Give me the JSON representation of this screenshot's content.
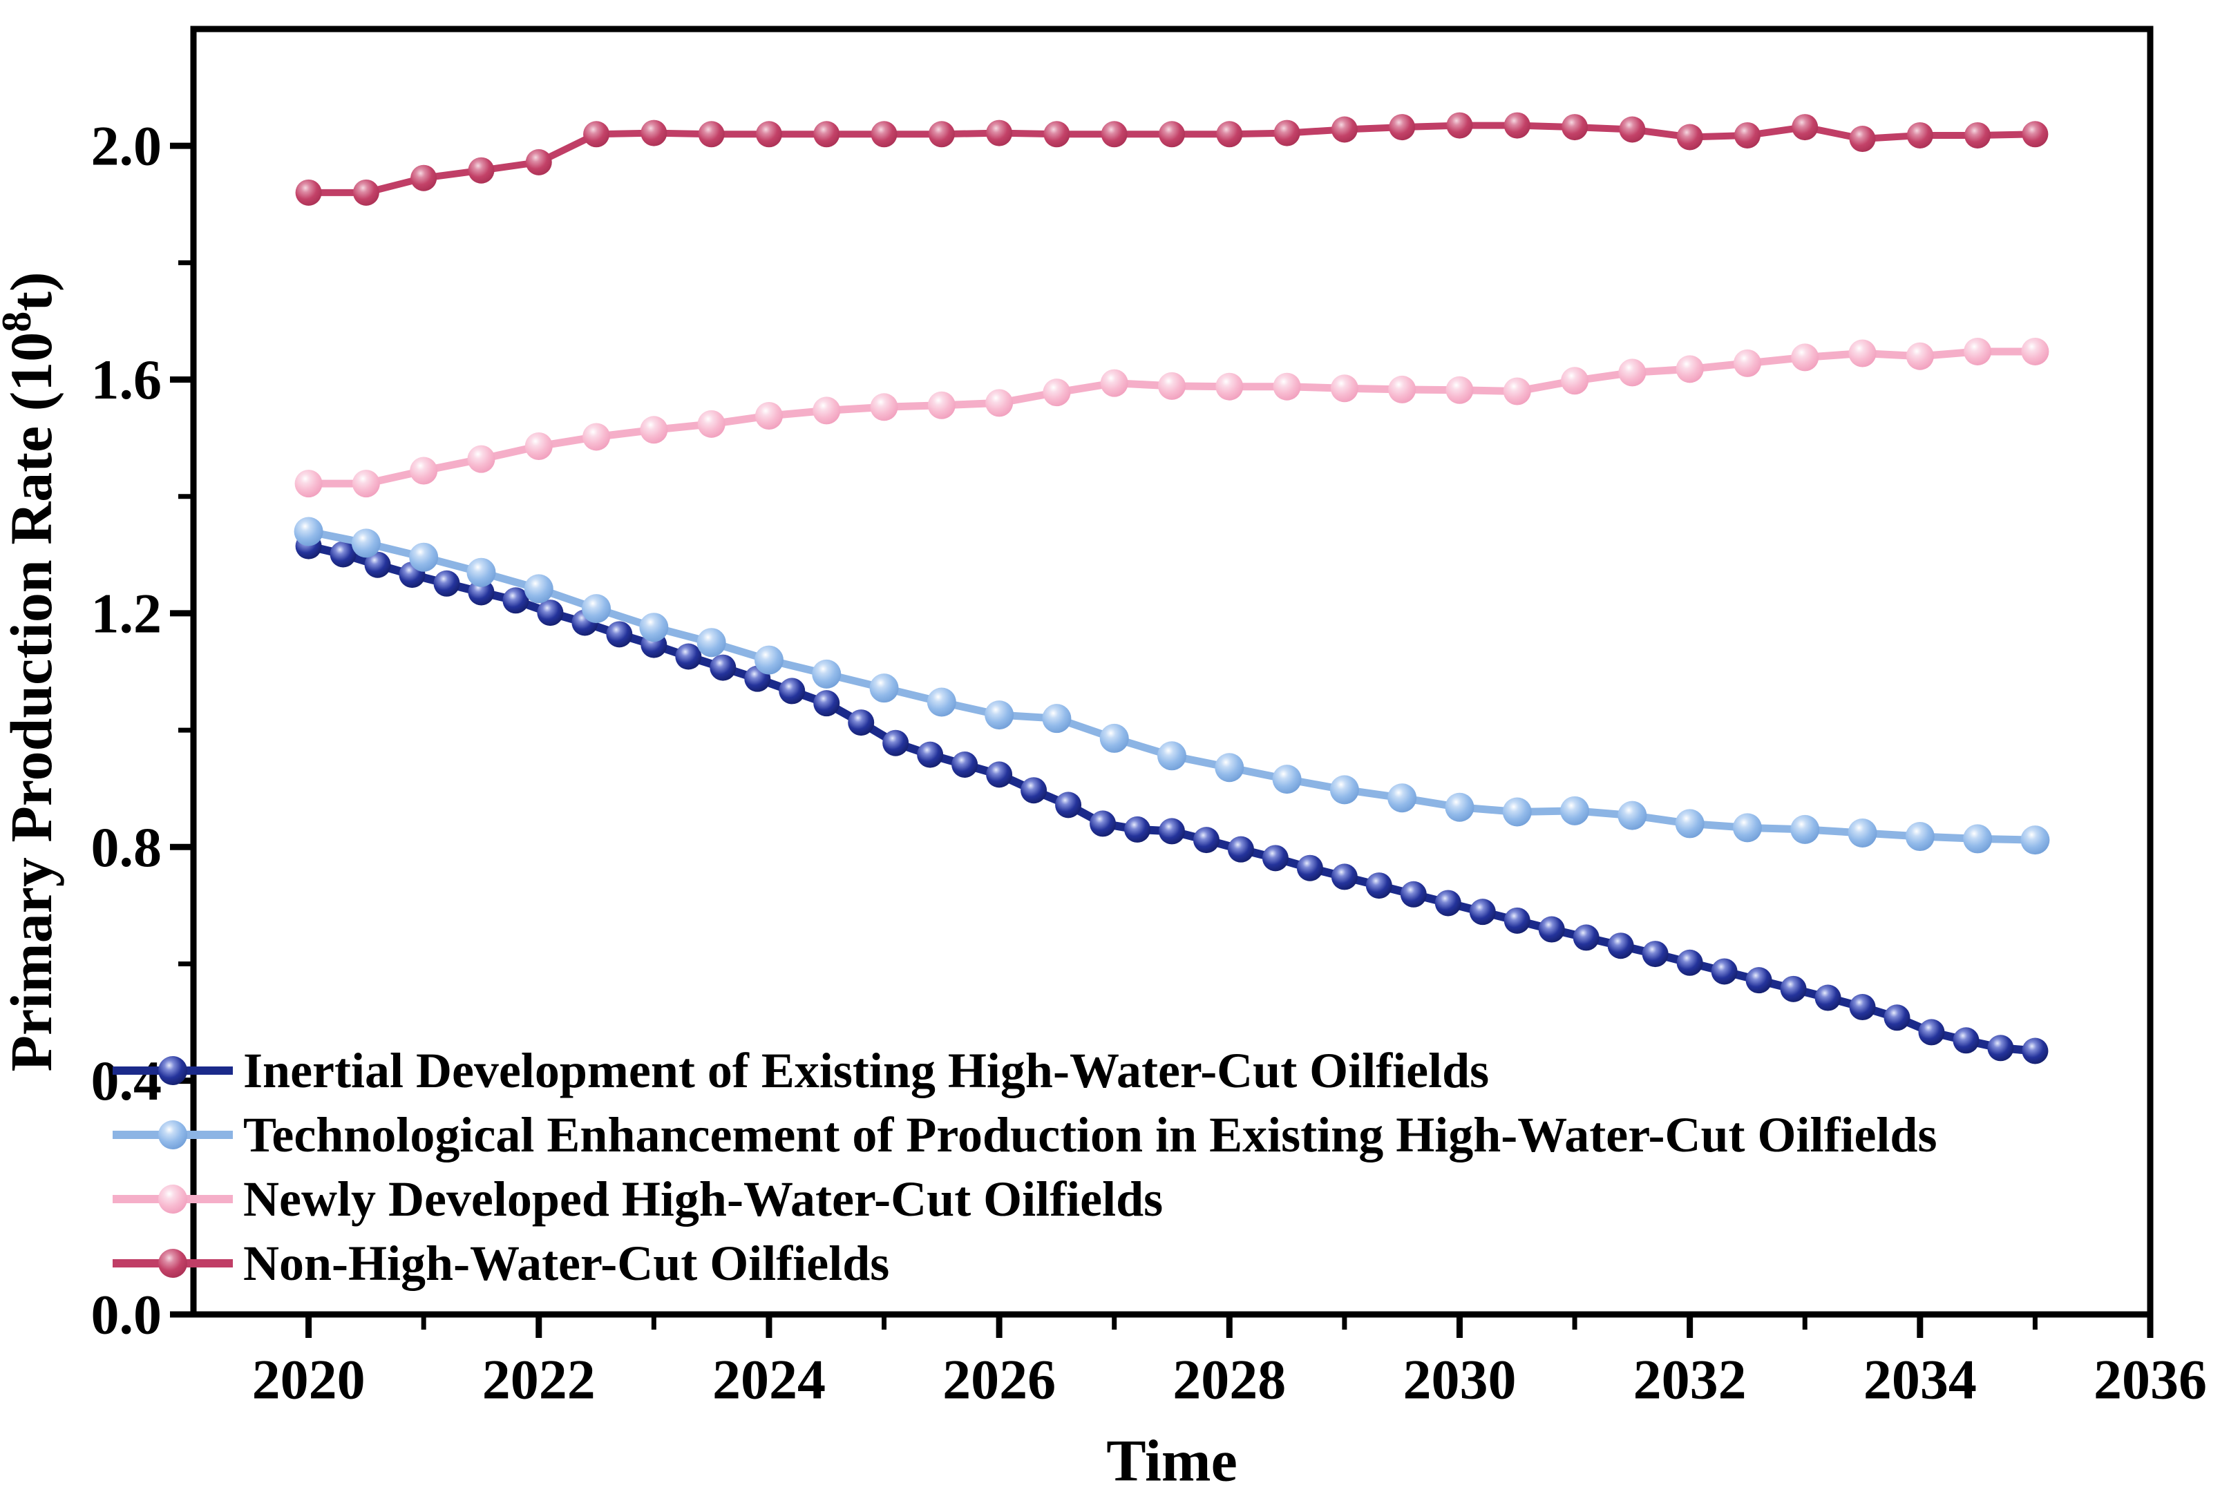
{
  "chart_data": {
    "type": "line",
    "title": "",
    "xlabel": "Time",
    "ylabel_parts": {
      "prefix": "Primary Production Rate (10",
      "superscript": "8",
      "suffix": "t)"
    },
    "xlim": [
      2019,
      2036
    ],
    "ylim": [
      0.0,
      2.2
    ],
    "grid": "off",
    "legend_position": "lower-left",
    "x_major_ticks": [
      2020,
      2022,
      2024,
      2026,
      2028,
      2030,
      2032,
      2034,
      2036
    ],
    "x_tick_labels": [
      "2020",
      "2022",
      "2024",
      "2026",
      "2028",
      "2030",
      "2032",
      "2034",
      "2036"
    ],
    "x_minor_ticks": [
      2021,
      2023,
      2025,
      2027,
      2029,
      2031,
      2033,
      2035
    ],
    "y_major_ticks": [
      0.0,
      0.4,
      0.8,
      1.2,
      1.6,
      2.0
    ],
    "y_tick_labels": [
      "0.0",
      "0.4",
      "0.8",
      "1.2",
      "1.6",
      "2.0"
    ],
    "y_minor_ticks": [
      0.2,
      0.6,
      1.0,
      1.4,
      1.8
    ],
    "axis_color": "#000000",
    "series": [
      {
        "name": "Inertial Development of Existing High-Water-Cut Oilfields",
        "color": "#24339B",
        "line_color": "#1B2A8A",
        "highlight": "#E6EBFC",
        "mid": "#7C89D6",
        "edge": "#121C66",
        "marker_radius": 19,
        "line_width": 12,
        "x": [
          2020,
          2020.3,
          2020.6,
          2020.9,
          2021.2,
          2021.5,
          2021.8,
          2022.1,
          2022.4,
          2022.7,
          2023,
          2023.3,
          2023.6,
          2023.9,
          2024.2,
          2024.5,
          2024.8,
          2025.1,
          2025.4,
          2025.7,
          2026,
          2026.3,
          2026.6,
          2026.9,
          2027.2,
          2027.5,
          2027.8,
          2028.1,
          2028.4,
          2028.7,
          2029,
          2029.3,
          2029.6,
          2029.9,
          2030.2,
          2030.5,
          2030.8,
          2031.1,
          2031.4,
          2031.7,
          2032,
          2032.3,
          2032.6,
          2032.9,
          2033.2,
          2033.5,
          2033.8,
          2034.1,
          2034.4,
          2034.7,
          2035
        ],
        "y": [
          1.315,
          1.301,
          1.283,
          1.266,
          1.251,
          1.236,
          1.222,
          1.201,
          1.184,
          1.164,
          1.146,
          1.126,
          1.107,
          1.088,
          1.067,
          1.046,
          1.013,
          0.978,
          0.958,
          0.941,
          0.924,
          0.897,
          0.872,
          0.84,
          0.83,
          0.827,
          0.812,
          0.796,
          0.781,
          0.764,
          0.749,
          0.734,
          0.719,
          0.704,
          0.689,
          0.674,
          0.659,
          0.645,
          0.631,
          0.617,
          0.602,
          0.587,
          0.572,
          0.557,
          0.542,
          0.526,
          0.508,
          0.483,
          0.469,
          0.456,
          0.451
        ]
      },
      {
        "name": "Technological Enhancement of Production in Existing High-Water-Cut Oilfields",
        "color": "#92BAEA",
        "line_color": "#8CB4E4",
        "highlight": "#FFFFFF",
        "mid": "#C6DCF6",
        "edge": "#6E9CD6",
        "marker_radius": 21,
        "line_width": 11,
        "x": [
          2020,
          2020.5,
          2021,
          2021.5,
          2022,
          2022.5,
          2023,
          2023.5,
          2024,
          2024.5,
          2025,
          2025.5,
          2026,
          2026.5,
          2027,
          2027.5,
          2028,
          2028.5,
          2029,
          2029.5,
          2030,
          2030.5,
          2031,
          2031.5,
          2032,
          2032.5,
          2033,
          2033.5,
          2034,
          2034.5,
          2035
        ],
        "y": [
          1.34,
          1.32,
          1.296,
          1.27,
          1.242,
          1.208,
          1.176,
          1.15,
          1.12,
          1.096,
          1.072,
          1.048,
          1.026,
          1.02,
          0.986,
          0.956,
          0.936,
          0.916,
          0.898,
          0.884,
          0.868,
          0.86,
          0.862,
          0.854,
          0.84,
          0.833,
          0.83,
          0.824,
          0.818,
          0.814,
          0.812
        ]
      },
      {
        "name": "Newly Developed High-Water-Cut Oilfields",
        "color": "#F8BAD0",
        "line_color": "#F5AEC8",
        "highlight": "#FFFFFF",
        "mid": "#FBDCE8",
        "edge": "#F09CBB",
        "marker_radius": 20,
        "line_width": 11,
        "x": [
          2020,
          2020.5,
          2021,
          2021.5,
          2022,
          2022.5,
          2023,
          2023.5,
          2024,
          2024.5,
          2025,
          2025.5,
          2026,
          2026.5,
          2027,
          2027.5,
          2028,
          2028.5,
          2029,
          2029.5,
          2030,
          2030.5,
          2031,
          2031.5,
          2032,
          2032.5,
          2033,
          2033.5,
          2034,
          2034.5,
          2035
        ],
        "y": [
          1.422,
          1.422,
          1.444,
          1.464,
          1.486,
          1.502,
          1.514,
          1.524,
          1.538,
          1.547,
          1.553,
          1.556,
          1.56,
          1.578,
          1.594,
          1.589,
          1.588,
          1.588,
          1.585,
          1.583,
          1.582,
          1.58,
          1.598,
          1.612,
          1.618,
          1.628,
          1.638,
          1.645,
          1.64,
          1.648,
          1.648
        ]
      },
      {
        "name": "Non-High-Water-Cut Oilfields",
        "color": "#C34268",
        "line_color": "#C03E66",
        "highlight": "#F5D7E0",
        "mid": "#DD8BA4",
        "edge": "#A82E52",
        "marker_radius": 19,
        "line_width": 10,
        "x": [
          2020,
          2020.5,
          2021,
          2021.5,
          2022,
          2022.5,
          2023,
          2023.5,
          2024,
          2024.5,
          2025,
          2025.5,
          2026,
          2026.5,
          2027,
          2027.5,
          2028,
          2028.5,
          2029,
          2029.5,
          2030,
          2030.5,
          2031,
          2031.5,
          2032,
          2032.5,
          2033,
          2033.5,
          2034,
          2034.5,
          2035
        ],
        "y": [
          1.92,
          1.92,
          1.945,
          1.958,
          1.972,
          2.02,
          2.022,
          2.02,
          2.02,
          2.02,
          2.02,
          2.02,
          2.022,
          2.02,
          2.02,
          2.02,
          2.02,
          2.022,
          2.028,
          2.032,
          2.035,
          2.035,
          2.032,
          2.028,
          2.015,
          2.018,
          2.032,
          2.012,
          2.018,
          2.018,
          2.02
        ]
      }
    ]
  }
}
